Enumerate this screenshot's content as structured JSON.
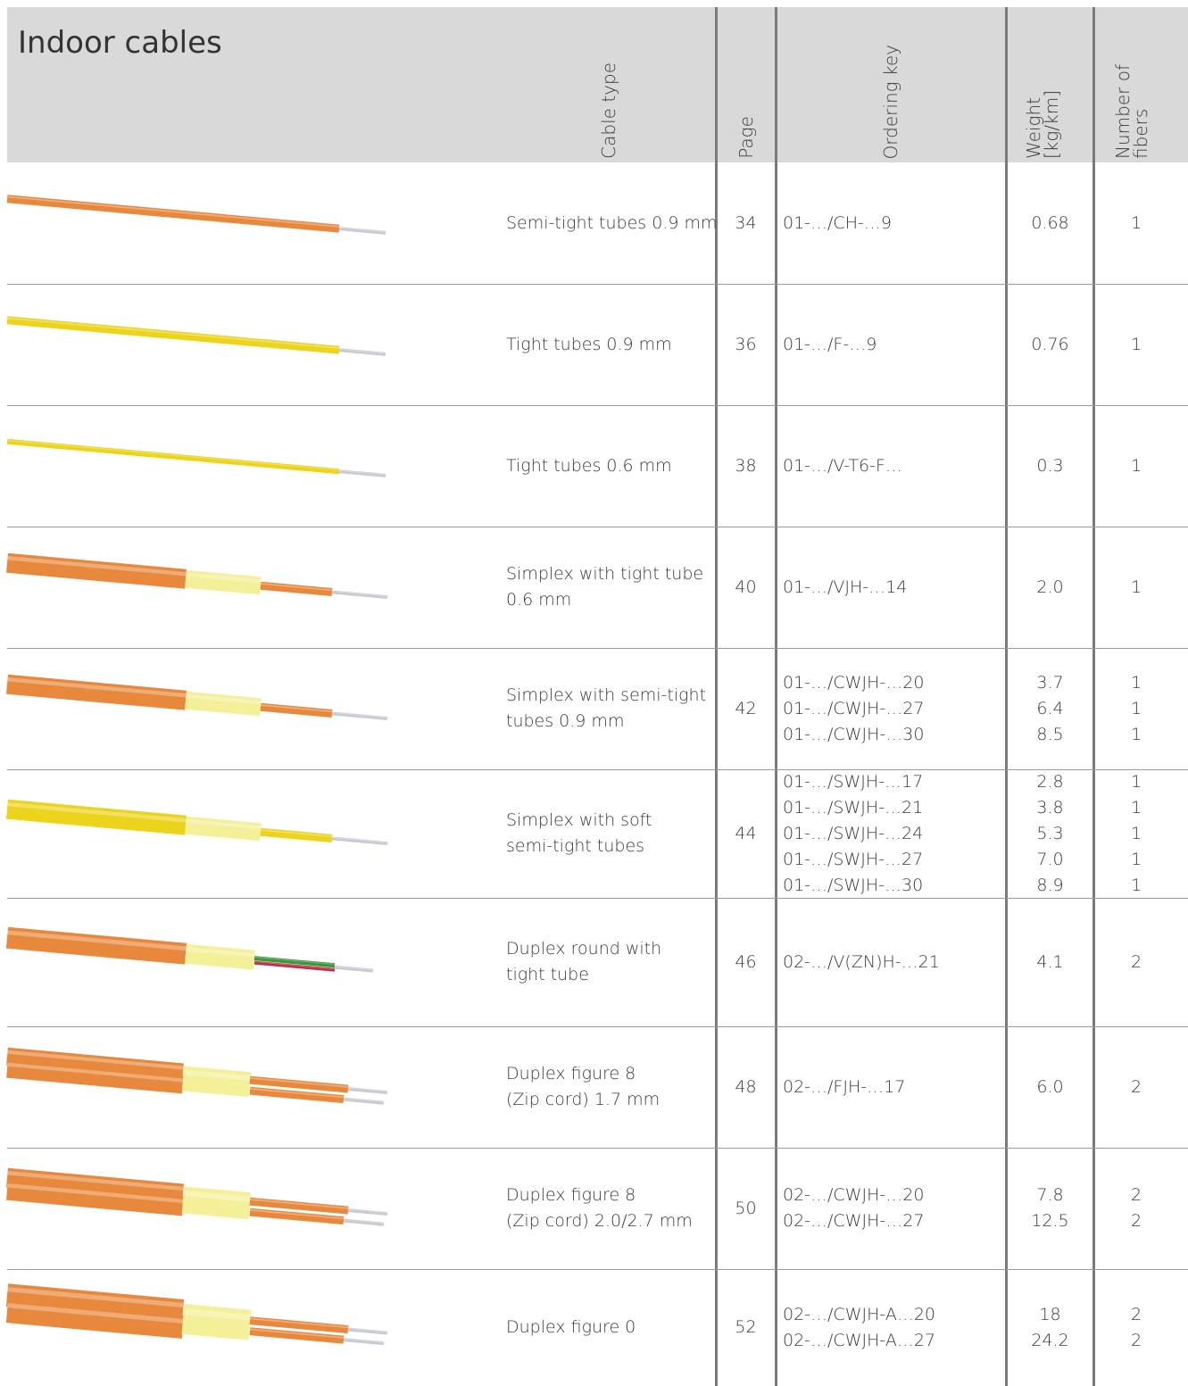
{
  "header": {
    "title": "Indoor cables",
    "columns": [
      [
        "Cable type"
      ],
      [
        "Page"
      ],
      [
        "Ordering key"
      ],
      [
        "Weight",
        "[kg/km]"
      ],
      [
        "Number of",
        "fibers"
      ]
    ]
  },
  "rows": [
    {
      "cable_type": [
        "Semi-tight tubes 0.9 mm"
      ],
      "page": "34",
      "ordering_keys": [
        "01-…/CH-…9"
      ],
      "weights": [
        "0.68"
      ],
      "fibers": [
        "1"
      ]
    },
    {
      "cable_type": [
        "Tight tubes 0.9 mm"
      ],
      "page": "36",
      "ordering_keys": [
        "01-…/F-…9"
      ],
      "weights": [
        "0.76"
      ],
      "fibers": [
        "1"
      ]
    },
    {
      "cable_type": [
        "Tight tubes 0.6 mm"
      ],
      "page": "38",
      "ordering_keys": [
        "01-…/V-T6-F…"
      ],
      "weights": [
        "0.3"
      ],
      "fibers": [
        "1"
      ]
    },
    {
      "cable_type": [
        "Simplex with tight tube",
        "0.6 mm"
      ],
      "page": "40",
      "ordering_keys": [
        "01-…/VJH-…14"
      ],
      "weights": [
        "2.0"
      ],
      "fibers": [
        "1"
      ]
    },
    {
      "cable_type": [
        "Simplex with semi-tight",
        "tubes 0.9 mm"
      ],
      "page": "42",
      "ordering_keys": [
        "01-…/CWJH-…20",
        "01-…/CWJH-…27",
        "01-…/CWJH-…30"
      ],
      "weights": [
        "3.7",
        "6.4",
        "8.5"
      ],
      "fibers": [
        "1",
        "1",
        "1"
      ]
    },
    {
      "cable_type": [
        "Simplex with soft",
        "semi-tight tubes"
      ],
      "page": "44",
      "ordering_keys": [
        "01-…/SWJH-…17",
        "01-…/SWJH-…21",
        "01-…/SWJH-…24",
        "01-…/SWJH-…27",
        "01-…/SWJH-…30"
      ],
      "weights": [
        "2.8",
        "3.8",
        "5.3",
        "7.0",
        "8.9"
      ],
      "fibers": [
        "1",
        "1",
        "1",
        "1",
        "1"
      ]
    },
    {
      "cable_type": [
        "Duplex round with",
        "tight tube"
      ],
      "page": "46",
      "ordering_keys": [
        "02-…/V(ZN)H-…21"
      ],
      "weights": [
        "4.1"
      ],
      "fibers": [
        "2"
      ]
    },
    {
      "cable_type": [
        "Duplex figure 8",
        "(Zip cord) 1.7 mm"
      ],
      "page": "48",
      "ordering_keys": [
        "02-…/FJH-…17"
      ],
      "weights": [
        "6.0"
      ],
      "fibers": [
        "2"
      ]
    },
    {
      "cable_type": [
        "Duplex figure 8",
        "(Zip cord) 2.0/2.7 mm"
      ],
      "page": "50",
      "ordering_keys": [
        "02-…/CWJH-…20",
        "02-…/CWJH-…27"
      ],
      "weights": [
        "7.8",
        "12.5"
      ],
      "fibers": [
        "2",
        "2"
      ]
    },
    {
      "cable_type": [
        "Duplex figure 0"
      ],
      "page": "52",
      "ordering_keys": [
        "02-…/CWJH-A…20",
        "02-…/CWJH-A…27"
      ],
      "weights": [
        "18",
        "24.2"
      ],
      "fibers": [
        "2",
        "2"
      ]
    }
  ]
}
